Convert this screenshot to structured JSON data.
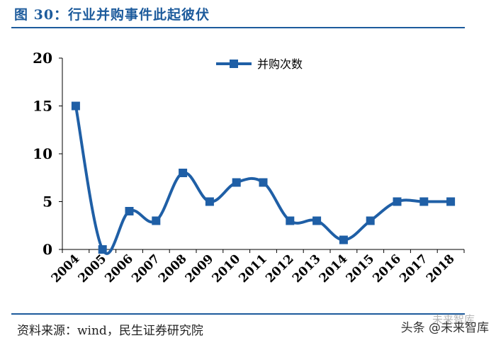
{
  "title": "图 30：行业并购事件此起彼伏",
  "source": "资料来源：wind，民生证券研究院",
  "watermark": "头条 @未来智库",
  "watermark_line2": "未来智库",
  "colors": {
    "accent": "#1d5b9c",
    "series": "#1f5fa6"
  },
  "chart_data": {
    "type": "line",
    "title": "",
    "xlabel": "",
    "ylabel": "",
    "categories": [
      "2004",
      "2005",
      "2006",
      "2007",
      "2008",
      "2009",
      "2010",
      "2011",
      "2012",
      "2013",
      "2014",
      "2015",
      "2016",
      "2017",
      "2018"
    ],
    "series": [
      {
        "name": "并购次数",
        "values": [
          15,
          0,
          4,
          3,
          8,
          5,
          7,
          7,
          3,
          3,
          1,
          3,
          5,
          5,
          5
        ]
      }
    ],
    "ylim": [
      0,
      20
    ],
    "yticks": [
      "0",
      "5",
      "10",
      "15",
      "20"
    ],
    "grid": false,
    "legend": "top-center",
    "marker": "square",
    "smooth": true
  }
}
